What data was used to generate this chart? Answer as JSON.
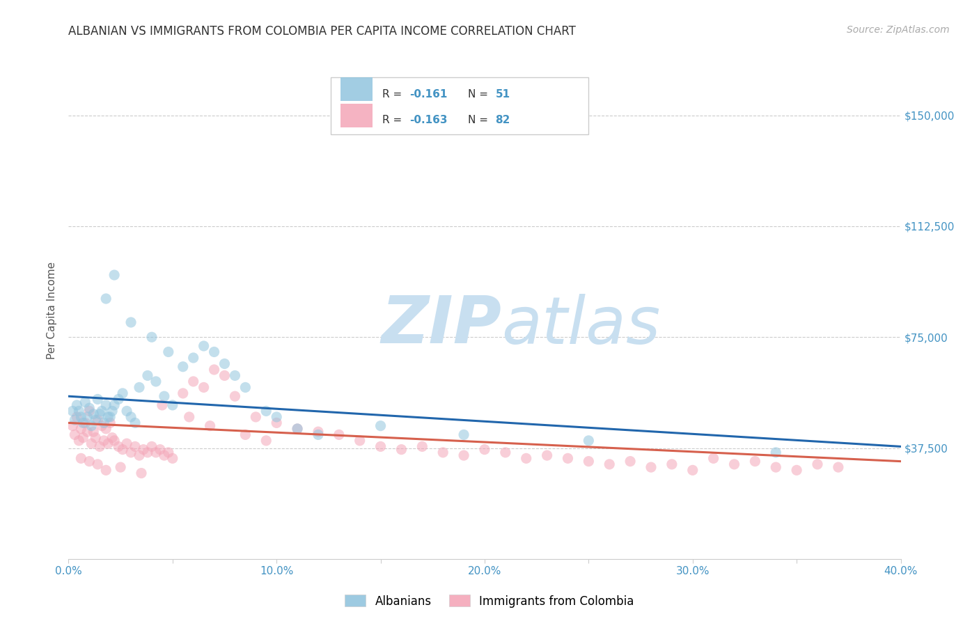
{
  "title": "ALBANIAN VS IMMIGRANTS FROM COLOMBIA PER CAPITA INCOME CORRELATION CHART",
  "source": "Source: ZipAtlas.com",
  "ylabel": "Per Capita Income",
  "legend_blue_label": "Albanians",
  "legend_pink_label": "Immigrants from Colombia",
  "xlim": [
    0.0,
    0.4
  ],
  "ylim": [
    0,
    168000
  ],
  "yticks": [
    0,
    37500,
    75000,
    112500,
    150000
  ],
  "ytick_labels": [
    "",
    "$37,500",
    "$75,000",
    "$112,500",
    "$150,000"
  ],
  "xtick_labels": [
    "0.0%",
    "",
    "10.0%",
    "",
    "20.0%",
    "",
    "30.0%",
    "",
    "40.0%"
  ],
  "xticks": [
    0.0,
    0.05,
    0.1,
    0.15,
    0.2,
    0.25,
    0.3,
    0.35,
    0.4
  ],
  "blue_color": "#92c5de",
  "pink_color": "#f4a6b8",
  "blue_line_color": "#2166ac",
  "pink_line_color": "#d6604d",
  "axis_color": "#4393c3",
  "watermark_color": "#c8dff0",
  "background_color": "#ffffff",
  "grid_color": "#cccccc",
  "marker_size": 120,
  "marker_alpha": 0.55,
  "blue_scatter_x": [
    0.002,
    0.004,
    0.006,
    0.008,
    0.01,
    0.012,
    0.014,
    0.016,
    0.018,
    0.02,
    0.003,
    0.005,
    0.007,
    0.009,
    0.011,
    0.013,
    0.015,
    0.017,
    0.019,
    0.021,
    0.022,
    0.024,
    0.026,
    0.028,
    0.03,
    0.032,
    0.034,
    0.038,
    0.042,
    0.046,
    0.05,
    0.055,
    0.06,
    0.065,
    0.07,
    0.075,
    0.08,
    0.085,
    0.095,
    0.1,
    0.11,
    0.12,
    0.15,
    0.19,
    0.25,
    0.34,
    0.018,
    0.022,
    0.03,
    0.04,
    0.048
  ],
  "blue_scatter_y": [
    50000,
    52000,
    48000,
    53000,
    51000,
    49000,
    54000,
    50000,
    52000,
    48000,
    47000,
    50000,
    46000,
    48000,
    45000,
    47000,
    49000,
    46000,
    48000,
    50000,
    52000,
    54000,
    56000,
    50000,
    48000,
    46000,
    58000,
    62000,
    60000,
    55000,
    52000,
    65000,
    68000,
    72000,
    70000,
    66000,
    62000,
    58000,
    50000,
    48000,
    44000,
    42000,
    45000,
    42000,
    40000,
    36000,
    88000,
    96000,
    80000,
    75000,
    70000
  ],
  "pink_scatter_x": [
    0.002,
    0.004,
    0.006,
    0.008,
    0.01,
    0.012,
    0.014,
    0.016,
    0.018,
    0.02,
    0.003,
    0.005,
    0.007,
    0.009,
    0.011,
    0.013,
    0.015,
    0.017,
    0.019,
    0.021,
    0.022,
    0.024,
    0.026,
    0.028,
    0.03,
    0.032,
    0.034,
    0.036,
    0.038,
    0.04,
    0.042,
    0.044,
    0.046,
    0.048,
    0.05,
    0.055,
    0.06,
    0.065,
    0.07,
    0.075,
    0.08,
    0.09,
    0.1,
    0.11,
    0.12,
    0.13,
    0.14,
    0.15,
    0.16,
    0.17,
    0.18,
    0.19,
    0.2,
    0.21,
    0.22,
    0.23,
    0.24,
    0.25,
    0.26,
    0.27,
    0.28,
    0.29,
    0.3,
    0.31,
    0.32,
    0.33,
    0.34,
    0.35,
    0.36,
    0.37,
    0.006,
    0.01,
    0.014,
    0.018,
    0.025,
    0.035,
    0.045,
    0.058,
    0.068,
    0.085,
    0.095
  ],
  "pink_scatter_y": [
    45000,
    48000,
    44000,
    46000,
    50000,
    43000,
    47000,
    45000,
    44000,
    46000,
    42000,
    40000,
    41000,
    43000,
    39000,
    41000,
    38000,
    40000,
    39000,
    41000,
    40000,
    38000,
    37000,
    39000,
    36000,
    38000,
    35000,
    37000,
    36000,
    38000,
    36000,
    37000,
    35000,
    36000,
    34000,
    56000,
    60000,
    58000,
    64000,
    62000,
    55000,
    48000,
    46000,
    44000,
    43000,
    42000,
    40000,
    38000,
    37000,
    38000,
    36000,
    35000,
    37000,
    36000,
    34000,
    35000,
    34000,
    33000,
    32000,
    33000,
    31000,
    32000,
    30000,
    34000,
    32000,
    33000,
    31000,
    30000,
    32000,
    31000,
    34000,
    33000,
    32000,
    30000,
    31000,
    29000,
    52000,
    48000,
    45000,
    42000,
    40000
  ],
  "blue_line_x": [
    0.0,
    0.4
  ],
  "blue_line_y": [
    55000,
    38000
  ],
  "pink_line_x": [
    0.0,
    0.4
  ],
  "pink_line_y": [
    46000,
    33000
  ]
}
